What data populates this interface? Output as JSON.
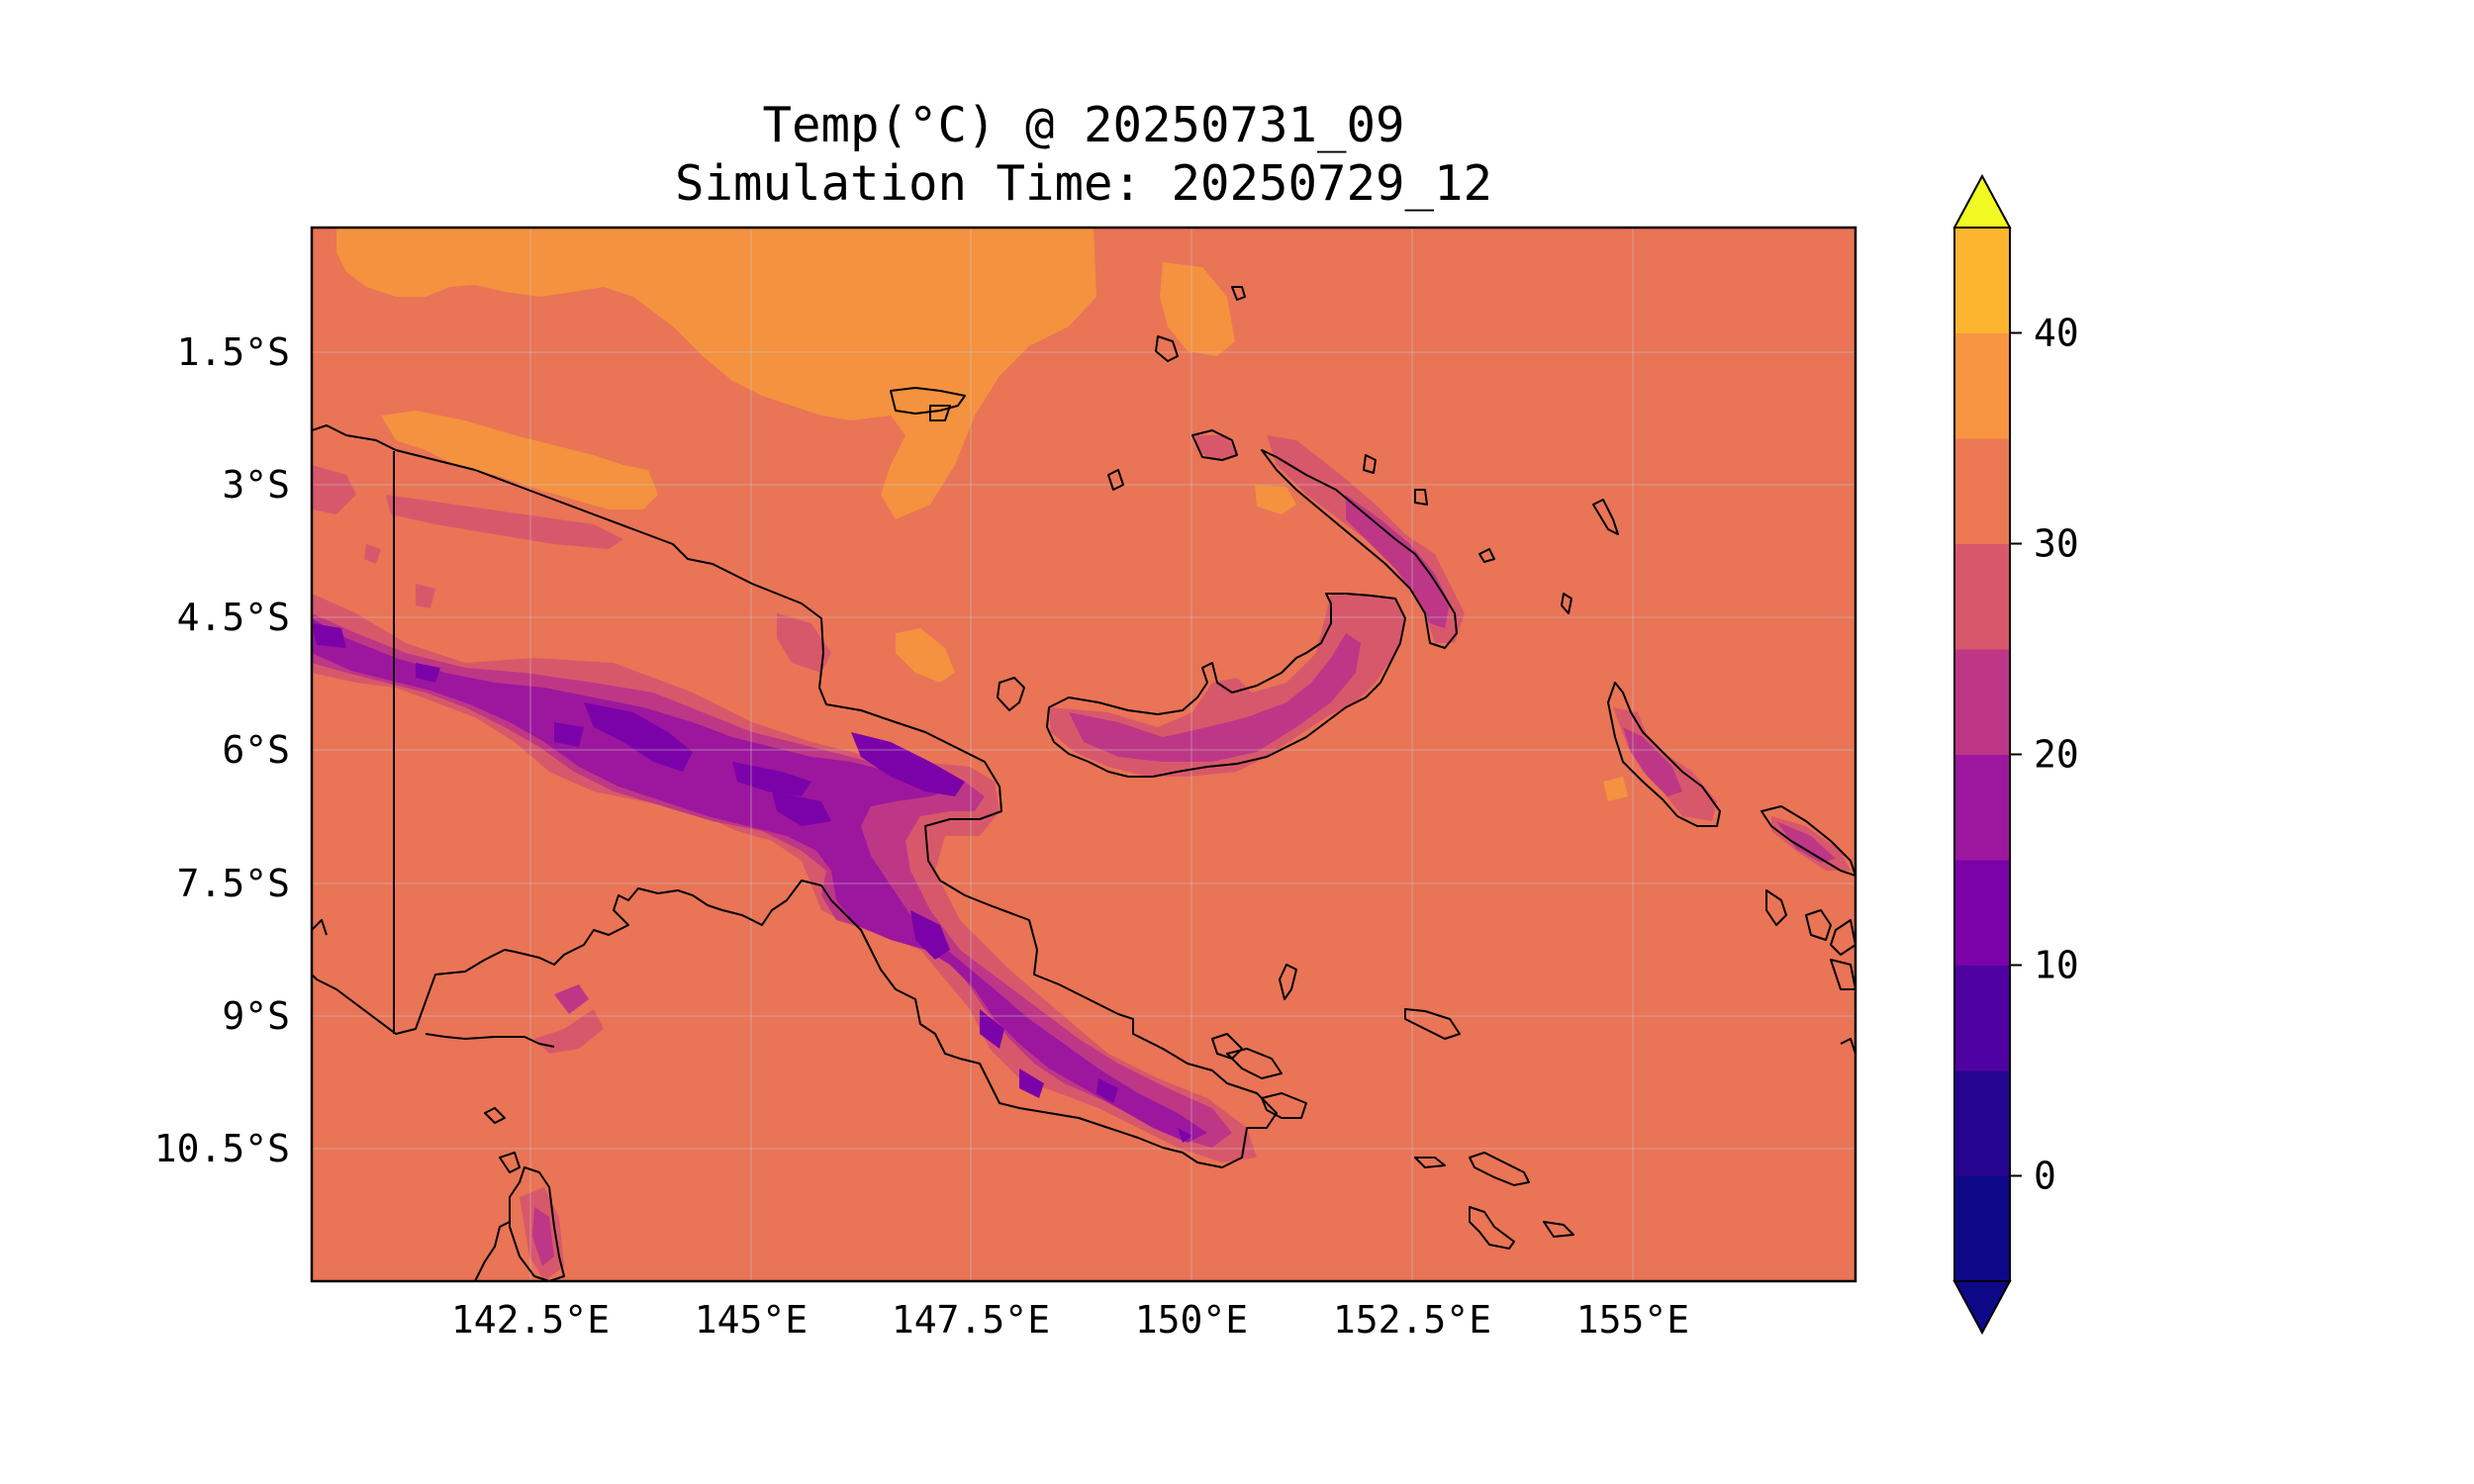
{
  "title": {
    "line1": "Temp(°C) @ 20250731_09",
    "line2": "Simulation Time: 20250729_12"
  },
  "map": {
    "region": "Papua New Guinea",
    "xticks": [
      "142.5°E",
      "145°E",
      "147.5°E",
      "150°E",
      "152.5°E",
      "155°E"
    ],
    "yticks": [
      "1.5°S",
      "3°S",
      "4.5°S",
      "6°S",
      "7.5°S",
      "9°S",
      "10.5°S"
    ],
    "gridlines": true
  },
  "colorbar": {
    "colormap": "plasma",
    "extend": "both",
    "ticks": [
      "0",
      "10",
      "20",
      "30",
      "40"
    ],
    "levels": [
      -5,
      0,
      5,
      10,
      15,
      20,
      25,
      30,
      35,
      40,
      45
    ],
    "colors": [
      "#0d0887",
      "#260591",
      "#4f02a2",
      "#7b02a8",
      "#9c179e",
      "#bd3786",
      "#d8576b",
      "#ec7853",
      "#f89540",
      "#fdb42f",
      "#f0f921"
    ],
    "under_color": "#0d0887",
    "over_color": "#f0f921"
  }
}
